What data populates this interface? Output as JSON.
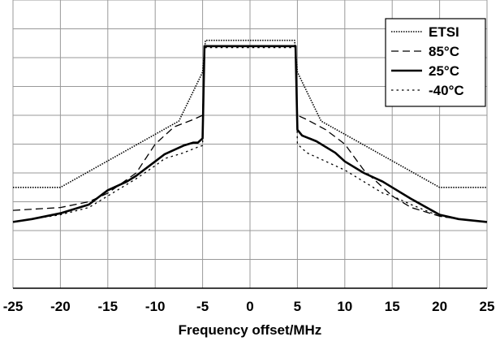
{
  "chart_data": {
    "type": "line",
    "title": "",
    "xlabel": "Frequency offset/MHz",
    "ylabel": "",
    "xlim": [
      -25,
      25
    ],
    "ylim": [
      -10,
      0
    ],
    "x_ticks": [
      -25,
      -20,
      -15,
      -10,
      -5,
      0,
      5,
      10,
      15,
      20,
      25
    ],
    "y_ticks": [
      -10,
      -9,
      -8,
      -7,
      -6,
      -5,
      -4,
      -3,
      -2,
      -1,
      0
    ],
    "y_tick_labels_shown": false,
    "grid": true,
    "legend_position": "top-right",
    "series": [
      {
        "name": "ETSI",
        "style": "dotted",
        "points": [
          [
            -25,
            -6.5
          ],
          [
            -20,
            -6.5
          ],
          [
            -7.5,
            -4.2
          ],
          [
            -5,
            -2.5
          ],
          [
            -4.7,
            -1.4
          ],
          [
            4.7,
            -1.4
          ],
          [
            5,
            -2.5
          ],
          [
            7.5,
            -4.2
          ],
          [
            20,
            -6.5
          ],
          [
            25,
            -6.5
          ]
        ]
      },
      {
        "name": "85°C",
        "style": "dashed",
        "points": [
          [
            -25,
            -7.3
          ],
          [
            -20,
            -7.2
          ],
          [
            -17,
            -7.0
          ],
          [
            -15,
            -6.7
          ],
          [
            -12,
            -6.0
          ],
          [
            -10,
            -5.0
          ],
          [
            -8,
            -4.4
          ],
          [
            -6,
            -4.15
          ],
          [
            -5,
            -4.0
          ],
          [
            -4.8,
            -1.6
          ],
          [
            4.8,
            -1.6
          ],
          [
            5,
            -4.0
          ],
          [
            6,
            -4.15
          ],
          [
            8,
            -4.5
          ],
          [
            10,
            -5.0
          ],
          [
            12,
            -5.9
          ],
          [
            15,
            -6.8
          ],
          [
            17,
            -7.2
          ],
          [
            20,
            -7.5
          ],
          [
            22,
            -7.6
          ],
          [
            25,
            -7.7
          ]
        ]
      },
      {
        "name": "25°C",
        "style": "solid",
        "points": [
          [
            -25,
            -7.7
          ],
          [
            -23,
            -7.6
          ],
          [
            -20,
            -7.4
          ],
          [
            -17,
            -7.1
          ],
          [
            -15,
            -6.6
          ],
          [
            -13,
            -6.3
          ],
          [
            -12,
            -6.1
          ],
          [
            -10,
            -5.6
          ],
          [
            -9,
            -5.35
          ],
          [
            -7,
            -5.05
          ],
          [
            -6,
            -4.95
          ],
          [
            -5.5,
            -4.95
          ],
          [
            -5,
            -4.8
          ],
          [
            -4.8,
            -1.6
          ],
          [
            4.8,
            -1.6
          ],
          [
            5,
            -4.5
          ],
          [
            5.5,
            -4.7
          ],
          [
            7,
            -4.9
          ],
          [
            9,
            -5.3
          ],
          [
            10,
            -5.6
          ],
          [
            12,
            -6.0
          ],
          [
            14,
            -6.3
          ],
          [
            15,
            -6.5
          ],
          [
            17,
            -6.9
          ],
          [
            20,
            -7.45
          ],
          [
            22,
            -7.6
          ],
          [
            25,
            -7.7
          ]
        ]
      },
      {
        "name": "-40°C",
        "style": "dotted-sparse",
        "points": [
          [
            -25,
            -7.7
          ],
          [
            -20,
            -7.45
          ],
          [
            -17,
            -7.2
          ],
          [
            -15,
            -6.8
          ],
          [
            -12,
            -6.2
          ],
          [
            -10,
            -5.75
          ],
          [
            -9,
            -5.5
          ],
          [
            -7,
            -5.3
          ],
          [
            -5.5,
            -5.1
          ],
          [
            -5,
            -5.05
          ],
          [
            -4.8,
            -1.65
          ],
          [
            4.8,
            -1.65
          ],
          [
            5,
            -5.0
          ],
          [
            6,
            -5.3
          ],
          [
            8,
            -5.6
          ],
          [
            10,
            -5.9
          ],
          [
            12,
            -6.3
          ],
          [
            14,
            -6.7
          ],
          [
            15,
            -6.8
          ],
          [
            17,
            -7.1
          ],
          [
            20,
            -7.5
          ],
          [
            22,
            -7.6
          ],
          [
            25,
            -7.7
          ]
        ]
      }
    ]
  }
}
